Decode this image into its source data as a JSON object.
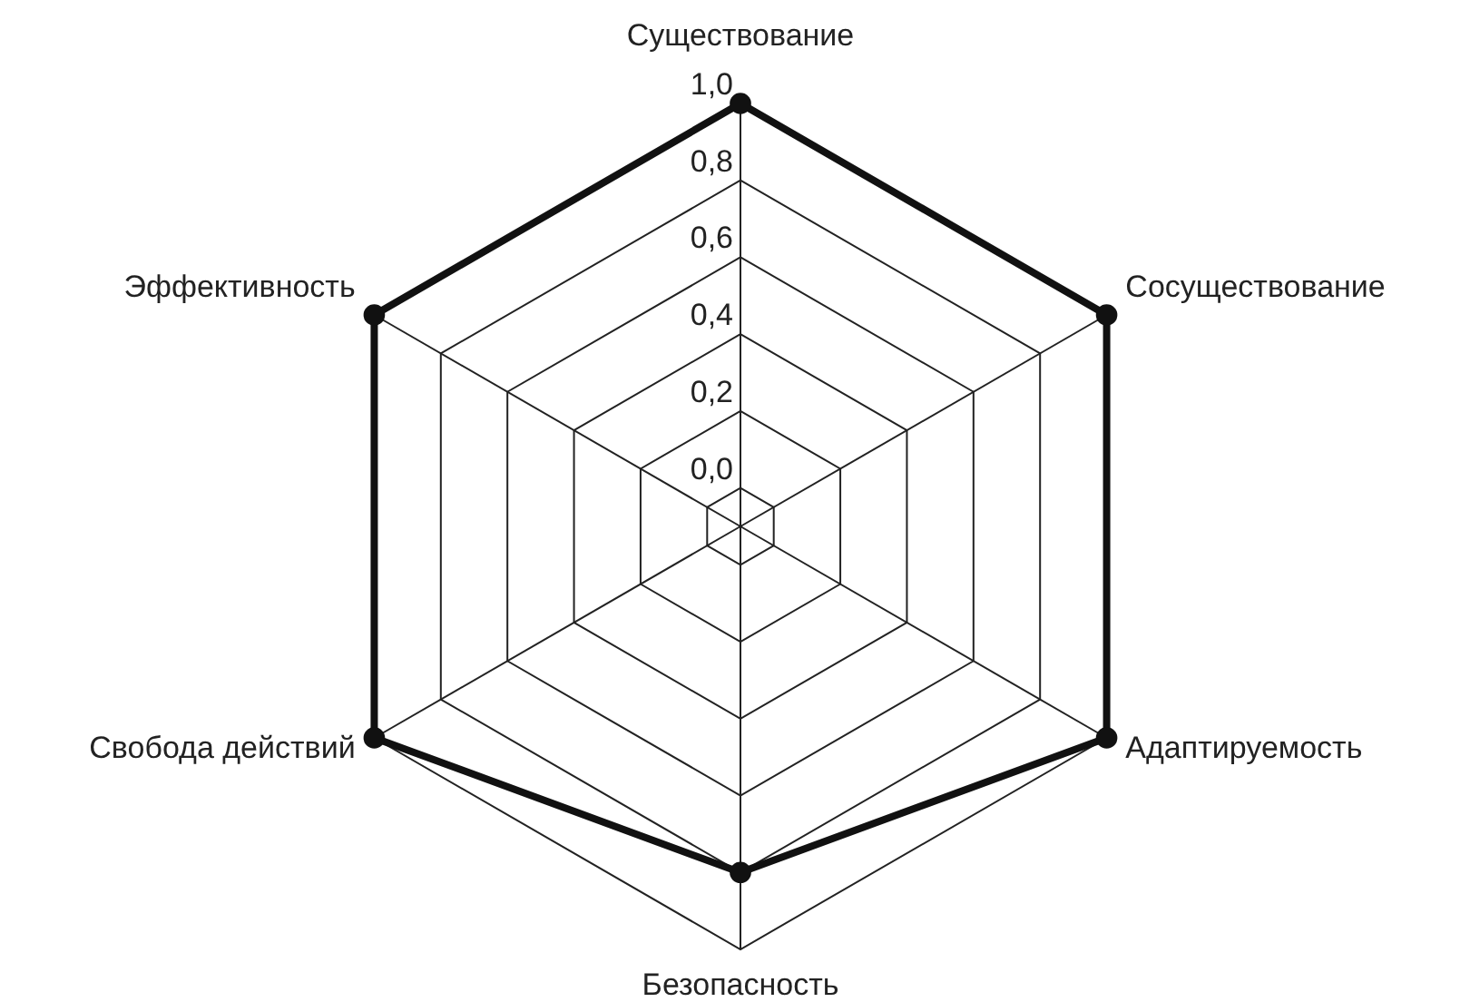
{
  "chart_data": {
    "type": "radar",
    "categories": [
      "Существование",
      "Сосуществование",
      "Адаптируемость",
      "Безопасность",
      "Свобода действий",
      "Эффективность"
    ],
    "series": [
      {
        "color": "#111111",
        "values": [
          1.0,
          1.0,
          1.0,
          0.8,
          1.0,
          1.0
        ]
      }
    ],
    "ylim": [
      -0.1,
      1
    ],
    "yticks": [
      {
        "value": 0,
        "label": "0,0"
      },
      {
        "value": 0.2,
        "label": "0,2"
      },
      {
        "value": 0.4,
        "label": "0,4"
      },
      {
        "value": 0.6,
        "label": "0,6"
      },
      {
        "value": 0.8,
        "label": "0,8"
      },
      {
        "value": 1,
        "label": "1,0"
      }
    ],
    "grid": true,
    "marker": "circle",
    "line_style": "solid"
  }
}
